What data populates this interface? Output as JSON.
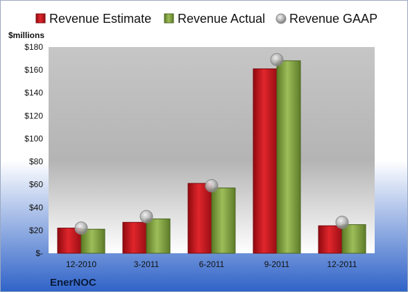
{
  "chart_data": {
    "type": "bar",
    "title": "",
    "ylabel": "$millions",
    "xlabel": "",
    "categories": [
      "12-2010",
      "3-2011",
      "6-2011",
      "9-2011",
      "12-2011"
    ],
    "ylim": [
      0,
      180
    ],
    "yticks": [
      {
        "value": 0,
        "label": "$-"
      },
      {
        "value": 20,
        "label": "$20"
      },
      {
        "value": 40,
        "label": "$40"
      },
      {
        "value": 60,
        "label": "$60"
      },
      {
        "value": 80,
        "label": "$80"
      },
      {
        "value": 100,
        "label": "$100"
      },
      {
        "value": 120,
        "label": "$120"
      },
      {
        "value": 140,
        "label": "$140"
      },
      {
        "value": 160,
        "label": "$160"
      },
      {
        "value": 180,
        "label": "$180"
      }
    ],
    "series": [
      {
        "name": "Revenue Estimate",
        "kind": "bar",
        "color": "#c0161c",
        "values": [
          22,
          27,
          61,
          161,
          24
        ]
      },
      {
        "name": "Revenue Actual",
        "kind": "bar",
        "color": "#7a9a3a",
        "values": [
          21,
          30,
          57,
          168,
          25
        ]
      },
      {
        "name": "Revenue GAAP",
        "kind": "marker",
        "color": "#a8a8a8",
        "values": [
          22,
          32,
          59,
          169,
          27
        ]
      }
    ],
    "legend_position": "top",
    "grid": false,
    "company": "EnerNOC"
  }
}
